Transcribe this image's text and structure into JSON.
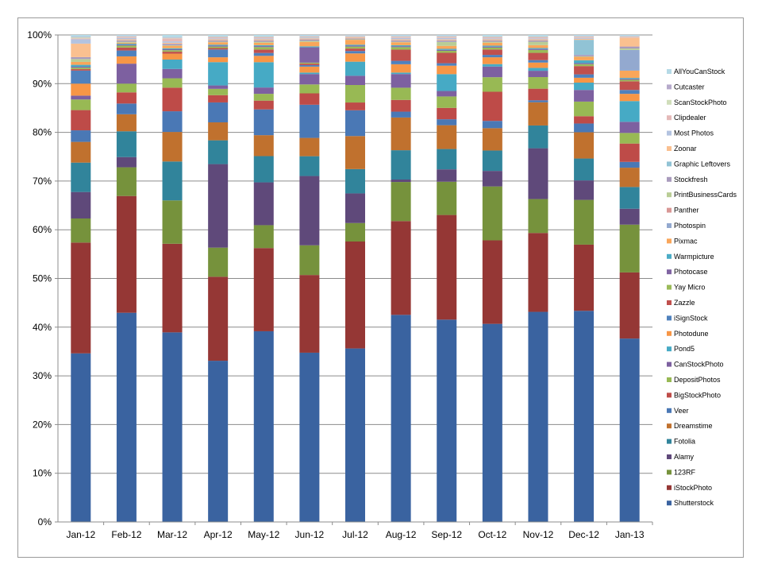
{
  "chart_data": {
    "type": "bar",
    "stacked": true,
    "percent_stacked": true,
    "categories": [
      "Jan-12",
      "Feb-12",
      "Mar-12",
      "Apr-12",
      "May-12",
      "Jun-12",
      "Jul-12",
      "Aug-12",
      "Sep-12",
      "Oct-12",
      "Nov-12",
      "Dec-12",
      "Jan-13"
    ],
    "y_ticks": [
      "0%",
      "10%",
      "20%",
      "30%",
      "40%",
      "50%",
      "60%",
      "70%",
      "80%",
      "90%",
      "100%"
    ],
    "ylim": [
      0,
      100
    ],
    "grid": true,
    "legend_position": "right",
    "series": [
      {
        "name": "Shutterstock",
        "color": "#3A63A0",
        "values": [
          35,
          43,
          38.5,
          33.2,
          39.2,
          34.2,
          35.7,
          42.4,
          40.8,
          40.8,
          43.4,
          43.4,
          38
        ]
      },
      {
        "name": "iStockPhoto",
        "color": "#953735",
        "values": [
          23,
          24,
          18,
          17.3,
          17.1,
          15.7,
          22,
          19.2,
          21.1,
          17.2,
          16.3,
          13.6,
          13.7
        ]
      },
      {
        "name": "123RF",
        "color": "#76923C",
        "values": [
          5,
          5.9,
          8.8,
          6,
          4.7,
          6,
          3.8,
          8,
          6.7,
          11.1,
          7,
          9.2,
          9.9
        ]
      },
      {
        "name": "Alamy",
        "color": "#5F497A",
        "values": [
          5.5,
          2.1,
          0,
          17.2,
          8.8,
          14,
          6.1,
          0.5,
          2.5,
          3.2,
          10.5,
          4,
          3.3
        ]
      },
      {
        "name": "Fotolia",
        "color": "#31849B",
        "values": [
          6.1,
          5.3,
          7.9,
          4.9,
          5.4,
          4,
          5,
          6,
          4.1,
          4.2,
          4.7,
          4.5,
          4.5
        ]
      },
      {
        "name": "Dreamstime",
        "color": "#C0712E",
        "values": [
          4.3,
          3.5,
          6,
          3.7,
          4.3,
          3.7,
          6.8,
          6.7,
          4.8,
          4.6,
          4.8,
          5.4,
          4
        ]
      },
      {
        "name": "Veer",
        "color": "#4A78B5",
        "values": [
          2.4,
          2.2,
          4.2,
          4.1,
          5.3,
          6.7,
          5.3,
          1.2,
          1.2,
          1.5,
          0.4,
          1.8,
          1.2
        ]
      },
      {
        "name": "BigStockPhoto",
        "color": "#BE4B48",
        "values": [
          4.2,
          2.3,
          4.8,
          1.5,
          1.8,
          2.3,
          1.6,
          2.4,
          2.3,
          6,
          2.4,
          1.5,
          3.8
        ]
      },
      {
        "name": "DepositPhotos",
        "color": "#98B954",
        "values": [
          2.2,
          1.8,
          1.9,
          1.3,
          1.4,
          1.8,
          3.6,
          2.5,
          2.3,
          3,
          2.4,
          3,
          2.2
        ]
      },
      {
        "name": "CanStockPhoto",
        "color": "#7D60A0",
        "values": [
          0.8,
          4.1,
          1.9,
          0.7,
          1.3,
          2.1,
          1.9,
          2.8,
          1.1,
          2.2,
          1.3,
          2.4,
          2.3
        ]
      },
      {
        "name": "Pond5",
        "color": "#46AAC5",
        "values": [
          0,
          0,
          1.9,
          4.8,
          5.2,
          0.3,
          2.9,
          0.3,
          3.4,
          0.5,
          0.6,
          1.5,
          4.3
        ]
      },
      {
        "name": "Photodune",
        "color": "#F79646",
        "values": [
          2.5,
          1.5,
          1.2,
          1,
          1.3,
          1.2,
          1.7,
          1.7,
          1.7,
          1.4,
          1.1,
          1,
          1.5
        ]
      },
      {
        "name": "iSignStock",
        "color": "#4F81BD",
        "values": [
          2.7,
          1.2,
          0,
          1.6,
          0.6,
          0.3,
          0.5,
          0.7,
          0.5,
          0.5,
          0.5,
          0.7,
          0.8
        ]
      },
      {
        "name": "Zazzle",
        "color": "#C0504D",
        "values": [
          0.3,
          0.6,
          0.4,
          0.3,
          0.7,
          0.3,
          0.5,
          2.3,
          2.1,
          1.1,
          1.5,
          1.7,
          1.8
        ]
      },
      {
        "name": "Yay Micro",
        "color": "#9BBB59",
        "values": [
          0.3,
          0.4,
          0.3,
          0.3,
          0.5,
          0.2,
          0.4,
          0.5,
          0.4,
          0.4,
          0.6,
          0.4,
          0.3
        ]
      },
      {
        "name": "Photocase",
        "color": "#8064A2",
        "values": [
          0.2,
          0.2,
          0.2,
          0.2,
          0.2,
          3.1,
          0.2,
          0.2,
          0.2,
          0.2,
          0.2,
          0.2,
          0.2
        ]
      },
      {
        "name": "Warmpicture",
        "color": "#4BACC6",
        "values": [
          0.4,
          0.2,
          0.2,
          0.2,
          0.2,
          0.2,
          0.2,
          0.2,
          0.2,
          0.2,
          0.2,
          0.6,
          0.2
        ]
      },
      {
        "name": "Pixmac",
        "color": "#F9A65A",
        "values": [
          0.6,
          0.2,
          0.5,
          0.5,
          0.5,
          0.9,
          1,
          0.6,
          0.6,
          0.6,
          0.6,
          0.7,
          1.5
        ]
      },
      {
        "name": "Photospin",
        "color": "#93A9CF",
        "values": [
          0,
          0,
          0,
          0,
          0,
          0,
          0,
          0,
          0,
          0,
          0,
          0,
          4.3
        ]
      },
      {
        "name": "Panther",
        "color": "#D99795",
        "values": [
          0,
          0,
          0,
          0,
          0,
          0,
          0,
          0,
          0,
          0,
          0,
          0,
          0
        ]
      },
      {
        "name": "PrintBusinessCards",
        "color": "#B9CD96",
        "values": [
          0.6,
          0.2,
          0.1,
          0.1,
          0.2,
          0.2,
          0.1,
          0.1,
          0.8,
          0.2,
          0.7,
          0.1,
          0.3
        ]
      },
      {
        "name": "Stockfresh",
        "color": "#A99BBD",
        "values": [
          0.4,
          0.3,
          0.3,
          0.3,
          0.3,
          0.3,
          0.2,
          0.3,
          0.3,
          0.3,
          0.3,
          0.3,
          0.4
        ]
      },
      {
        "name": "Graphic Leftovers",
        "color": "#91C3D5",
        "values": [
          0,
          0,
          0,
          0,
          0,
          0,
          0,
          0,
          0,
          0,
          0,
          3.1,
          0
        ]
      },
      {
        "name": "Zoonar",
        "color": "#FAC090",
        "values": [
          2.8,
          0.2,
          0.2,
          0.2,
          0.2,
          0.2,
          0.2,
          0.2,
          0.2,
          0.2,
          0.2,
          0.2,
          1.8
        ]
      },
      {
        "name": "Most Photos",
        "color": "#B3C3E0",
        "values": [
          0.9,
          0.3,
          0.3,
          0.2,
          0.2,
          0.2,
          0.1,
          0.3,
          0.3,
          0.2,
          0.2,
          0.2,
          0
        ]
      },
      {
        "name": "Clipdealer",
        "color": "#E4B9B8",
        "values": [
          0.2,
          0.2,
          0.6,
          0.2,
          0.2,
          0.1,
          0.1,
          0.2,
          0.2,
          0.2,
          0.2,
          0.2,
          0.2
        ]
      },
      {
        "name": "ScanStockPhoto",
        "color": "#D0DDBA",
        "values": [
          0.2,
          0.1,
          0.1,
          0.1,
          0.1,
          0.1,
          0.1,
          0.1,
          0.1,
          0.1,
          0.1,
          0.1,
          0.1
        ]
      },
      {
        "name": "Cutcaster",
        "color": "#B6AACB",
        "values": [
          0.1,
          0.1,
          0.1,
          0.1,
          0.1,
          0.1,
          0.1,
          0.1,
          0.1,
          0.1,
          0.1,
          0.1,
          0.1
        ]
      },
      {
        "name": "AllYouCanStock",
        "color": "#B5DAE6",
        "values": [
          0.4,
          0.2,
          0.5,
          0.3,
          0.3,
          0.2,
          0.1,
          0.2,
          0.2,
          0.3,
          0.3,
          0.2,
          0.2
        ]
      }
    ]
  }
}
